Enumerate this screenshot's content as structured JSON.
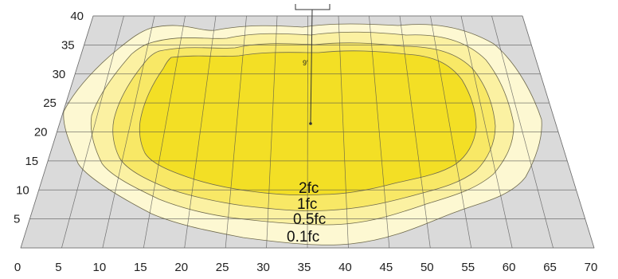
{
  "chart_data": {
    "type": "isofootcandle-plot",
    "x_ticks": [
      "0",
      "5",
      "10",
      "15",
      "20",
      "25",
      "30",
      "35",
      "40",
      "45",
      "50",
      "55",
      "60",
      "65",
      "70"
    ],
    "y_ticks": [
      "5",
      "10",
      "15",
      "20",
      "25",
      "30",
      "35",
      "40"
    ],
    "xlim": [
      0,
      70
    ],
    "ylim": [
      0,
      40
    ],
    "grid": true,
    "contours": [
      {
        "label": "0.1fc",
        "color": "#fdf8d2"
      },
      {
        "label": "0.5fc",
        "color": "#fbf1a2"
      },
      {
        "label": "1fc",
        "color": "#f8e866"
      },
      {
        "label": "2fc",
        "color": "#f3df25"
      }
    ],
    "mounting_height_label": "9'",
    "fixture_position": {
      "x": 35,
      "y": 19
    }
  }
}
